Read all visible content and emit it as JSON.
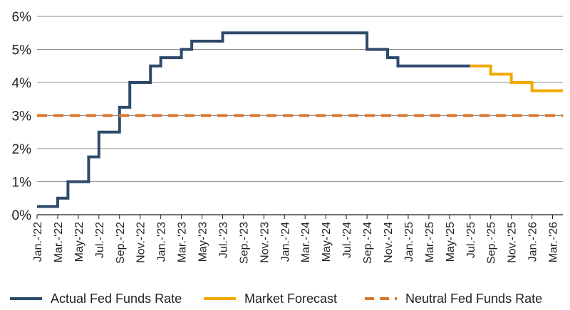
{
  "chart_data": {
    "type": "line",
    "title": "",
    "xlabel": "",
    "ylabel": "",
    "ylim": [
      0,
      6
    ],
    "y_ticks": [
      "0%",
      "1%",
      "2%",
      "3%",
      "4%",
      "5%",
      "6%"
    ],
    "x_range": [
      "2022-01",
      "2026-04"
    ],
    "x_ticks": [
      {
        "month": "2022-01",
        "label": "Jan.-'22"
      },
      {
        "month": "2022-03",
        "label": "Mar.-'22"
      },
      {
        "month": "2022-05",
        "label": "May-'22"
      },
      {
        "month": "2022-07",
        "label": "Jul.-'22"
      },
      {
        "month": "2022-09",
        "label": "Sep.-'22"
      },
      {
        "month": "2022-11",
        "label": "Nov.-'22"
      },
      {
        "month": "2023-01",
        "label": "Jan.-'23"
      },
      {
        "month": "2023-03",
        "label": "Mar.-'23"
      },
      {
        "month": "2023-05",
        "label": "May-'23"
      },
      {
        "month": "2023-07",
        "label": "Jul.-'23"
      },
      {
        "month": "2023-09",
        "label": "Sep.-'23"
      },
      {
        "month": "2023-11",
        "label": "Nov.-'23"
      },
      {
        "month": "2024-01",
        "label": "Jan.-'24"
      },
      {
        "month": "2024-03",
        "label": "Mar.-'24"
      },
      {
        "month": "2024-05",
        "label": "May-'24"
      },
      {
        "month": "2024-07",
        "label": "Jul.-'24"
      },
      {
        "month": "2024-09",
        "label": "Sep.-'24"
      },
      {
        "month": "2024-11",
        "label": "Nov.-'24"
      },
      {
        "month": "2025-01",
        "label": "Jan.-'25"
      },
      {
        "month": "2025-03",
        "label": "Mar.-'25"
      },
      {
        "month": "2025-05",
        "label": "May-'25"
      },
      {
        "month": "2025-07",
        "label": "Jul.-'25"
      },
      {
        "month": "2025-09",
        "label": "Sep.-'25"
      },
      {
        "month": "2025-11",
        "label": "Nov.-'25"
      },
      {
        "month": "2026-01",
        "label": "Jan.-'26"
      },
      {
        "month": "2026-03",
        "label": "Mar.-'26"
      }
    ],
    "grid": true,
    "legend_position": "bottom",
    "series": [
      {
        "name": "Actual Fed Funds Rate",
        "color": "#2e4a6b",
        "style": "step",
        "points": [
          {
            "month": "2022-01",
            "value": 0.25
          },
          {
            "month": "2022-03",
            "value": 0.5
          },
          {
            "month": "2022-04",
            "value": 1.0
          },
          {
            "month": "2022-06",
            "value": 1.75
          },
          {
            "month": "2022-07",
            "value": 2.5
          },
          {
            "month": "2022-09",
            "value": 3.25
          },
          {
            "month": "2022-10",
            "value": 4.0
          },
          {
            "month": "2022-12",
            "value": 4.5
          },
          {
            "month": "2023-01",
            "value": 4.75
          },
          {
            "month": "2023-03",
            "value": 5.0
          },
          {
            "month": "2023-04",
            "value": 5.25
          },
          {
            "month": "2023-07",
            "value": 5.5
          },
          {
            "month": "2024-09",
            "value": 5.0
          },
          {
            "month": "2024-11",
            "value": 4.75
          },
          {
            "month": "2024-12",
            "value": 4.5
          },
          {
            "month": "2025-07",
            "value": 4.5
          }
        ]
      },
      {
        "name": "Market Forecast",
        "color": "#f2a900",
        "style": "step",
        "points": [
          {
            "month": "2025-07",
            "value": 4.5
          },
          {
            "month": "2025-09",
            "value": 4.25
          },
          {
            "month": "2025-11",
            "value": 4.0
          },
          {
            "month": "2026-01",
            "value": 3.75
          },
          {
            "month": "2026-04",
            "value": 3.75
          }
        ]
      },
      {
        "name": "Neutral Fed Funds Rate",
        "color": "#d9762b",
        "style": "dashed",
        "points": [
          {
            "month": "2022-01",
            "value": 3.0
          },
          {
            "month": "2026-04",
            "value": 3.0
          }
        ]
      }
    ]
  }
}
